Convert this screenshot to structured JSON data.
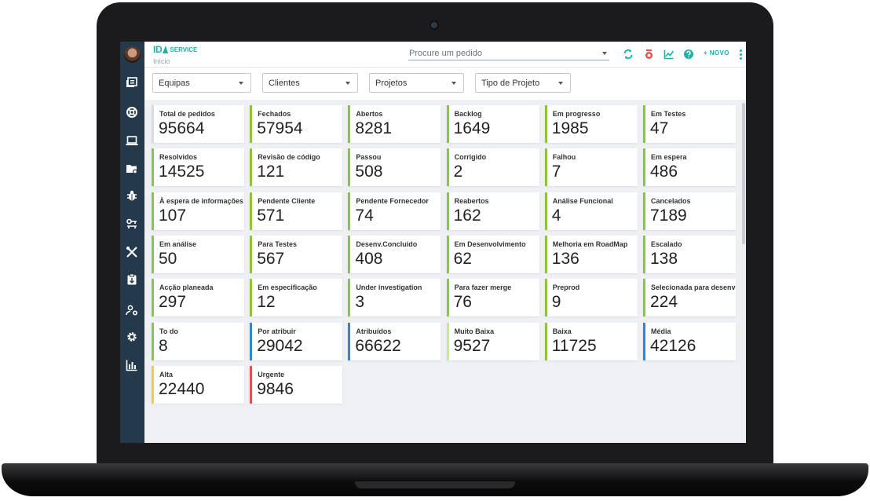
{
  "app": {
    "logo_text": "ID",
    "logo_suffix": "SERVICE",
    "breadcrumb": "Início"
  },
  "search": {
    "placeholder": "Procure um pedido"
  },
  "toolbar": {
    "new_label": "+ NOVO"
  },
  "filters": [
    {
      "label": "Equipas"
    },
    {
      "label": "Clientes"
    },
    {
      "label": "Projetos"
    },
    {
      "label": "Tipo de Projeto"
    }
  ],
  "sidebar": {
    "icons": [
      "dashboard-icon",
      "support-icon",
      "laptop-icon",
      "folder-settings-icon",
      "bug-icon",
      "key-icon",
      "tools-icon",
      "clipboard-icon",
      "user-settings-icon",
      "gear-icon",
      "bar-chart-icon"
    ]
  },
  "colors": {
    "accent": "#19b3a6",
    "sidebar": "#243a4c",
    "green": "#8ac640",
    "blue": "#2f87d6",
    "light_green": "#c6e5a6",
    "yellow": "#f7c948",
    "red": "#e0524a",
    "gray": "#d9dde2"
  },
  "cards": [
    {
      "label": "Total de pedidos",
      "value": "95664",
      "color": "gray"
    },
    {
      "label": "Fechados",
      "value": "57954",
      "color": "green"
    },
    {
      "label": "Abertos",
      "value": "8281",
      "color": "green"
    },
    {
      "label": "Backlog",
      "value": "1649",
      "color": "green"
    },
    {
      "label": "Em progresso",
      "value": "1985",
      "color": "green"
    },
    {
      "label": "Em Testes",
      "value": "47",
      "color": "green"
    },
    {
      "label": "Resolvidos",
      "value": "14525",
      "color": "green"
    },
    {
      "label": "Revisão de código",
      "value": "121",
      "color": "green"
    },
    {
      "label": "Passou",
      "value": "508",
      "color": "green"
    },
    {
      "label": "Corrigido",
      "value": "2",
      "color": "green"
    },
    {
      "label": "Falhou",
      "value": "7",
      "color": "green"
    },
    {
      "label": "Em espera",
      "value": "486",
      "color": "green"
    },
    {
      "label": "À espera de informações",
      "value": "107",
      "color": "green"
    },
    {
      "label": "Pendente Cliente",
      "value": "571",
      "color": "green"
    },
    {
      "label": "Pendente Fornecedor",
      "value": "74",
      "color": "green"
    },
    {
      "label": "Reabertos",
      "value": "162",
      "color": "green"
    },
    {
      "label": "Análise Funcional",
      "value": "4",
      "color": "green"
    },
    {
      "label": "Cancelados",
      "value": "7189",
      "color": "green"
    },
    {
      "label": "Em análise",
      "value": "50",
      "color": "green"
    },
    {
      "label": "Para Testes",
      "value": "567",
      "color": "green"
    },
    {
      "label": "Desenv.Concluido",
      "value": "408",
      "color": "green"
    },
    {
      "label": "Em Desenvolvimento",
      "value": "62",
      "color": "green"
    },
    {
      "label": "Melhoria em RoadMap",
      "value": "136",
      "color": "green"
    },
    {
      "label": "Escalado",
      "value": "138",
      "color": "green"
    },
    {
      "label": "Acção planeada",
      "value": "297",
      "color": "green"
    },
    {
      "label": "Em especificação",
      "value": "12",
      "color": "green"
    },
    {
      "label": "Under investigation",
      "value": "3",
      "color": "green"
    },
    {
      "label": "Para fazer merge",
      "value": "76",
      "color": "green"
    },
    {
      "label": "Preprod",
      "value": "9",
      "color": "green"
    },
    {
      "label": "Selecionada para desenvolvimento",
      "value": "224",
      "color": "green"
    },
    {
      "label": "To do",
      "value": "8",
      "color": "green"
    },
    {
      "label": "Por atribuir",
      "value": "29042",
      "color": "blue"
    },
    {
      "label": "Atribuídos",
      "value": "66622",
      "color": "blue"
    },
    {
      "label": "Muito Baixa",
      "value": "9527",
      "color": "light_green"
    },
    {
      "label": "Baixa",
      "value": "11725",
      "color": "green"
    },
    {
      "label": "Média",
      "value": "42126",
      "color": "blue"
    },
    {
      "label": "Alta",
      "value": "22440",
      "color": "yellow"
    },
    {
      "label": "Urgente",
      "value": "9846",
      "color": "red"
    }
  ]
}
